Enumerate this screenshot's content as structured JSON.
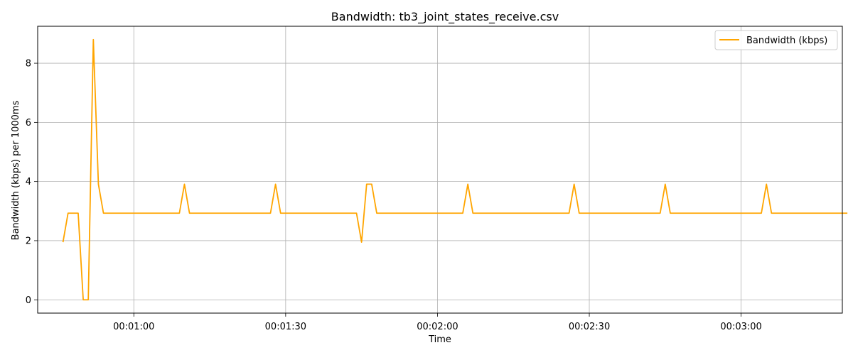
{
  "chart_data": {
    "type": "line",
    "title": "Bandwidth: tb3_joint_states_receive.csv",
    "xlabel": "Time",
    "ylabel": "Bandwidth (kbps) per 1000ms",
    "x_unit": "seconds",
    "xlim": [
      41,
      200
    ],
    "ylim": [
      -0.45,
      9.25
    ],
    "x_ticks": [
      {
        "value": 60,
        "label": "00:01:00"
      },
      {
        "value": 90,
        "label": "00:01:30"
      },
      {
        "value": 120,
        "label": "00:02:00"
      },
      {
        "value": 150,
        "label": "00:02:30"
      },
      {
        "value": 180,
        "label": "00:03:00"
      }
    ],
    "y_ticks": [
      {
        "value": 0,
        "label": "0"
      },
      {
        "value": 2,
        "label": "2"
      },
      {
        "value": 4,
        "label": "4"
      },
      {
        "value": 6,
        "label": "6"
      },
      {
        "value": 8,
        "label": "8"
      }
    ],
    "grid": true,
    "legend_position": "top-right",
    "series": [
      {
        "name": "Bandwidth (kbps)",
        "color": "#ffa500",
        "x": [
          46,
          47,
          48,
          49,
          50,
          51,
          52,
          53,
          54,
          55,
          69,
          70,
          71,
          87,
          88,
          89,
          104,
          105,
          106,
          107,
          108,
          125,
          126,
          127,
          146,
          147,
          148,
          164,
          165,
          166,
          184,
          185,
          186,
          201
        ],
        "y": [
          1.95,
          2.93,
          2.93,
          2.93,
          0.0,
          0.0,
          8.8,
          3.91,
          2.93,
          2.93,
          2.93,
          3.91,
          2.93,
          2.93,
          3.91,
          2.93,
          2.93,
          1.95,
          3.91,
          3.91,
          2.93,
          2.93,
          3.91,
          2.93,
          2.93,
          3.91,
          2.93,
          2.93,
          3.91,
          2.93,
          2.93,
          3.91,
          2.93,
          2.93
        ]
      }
    ]
  }
}
